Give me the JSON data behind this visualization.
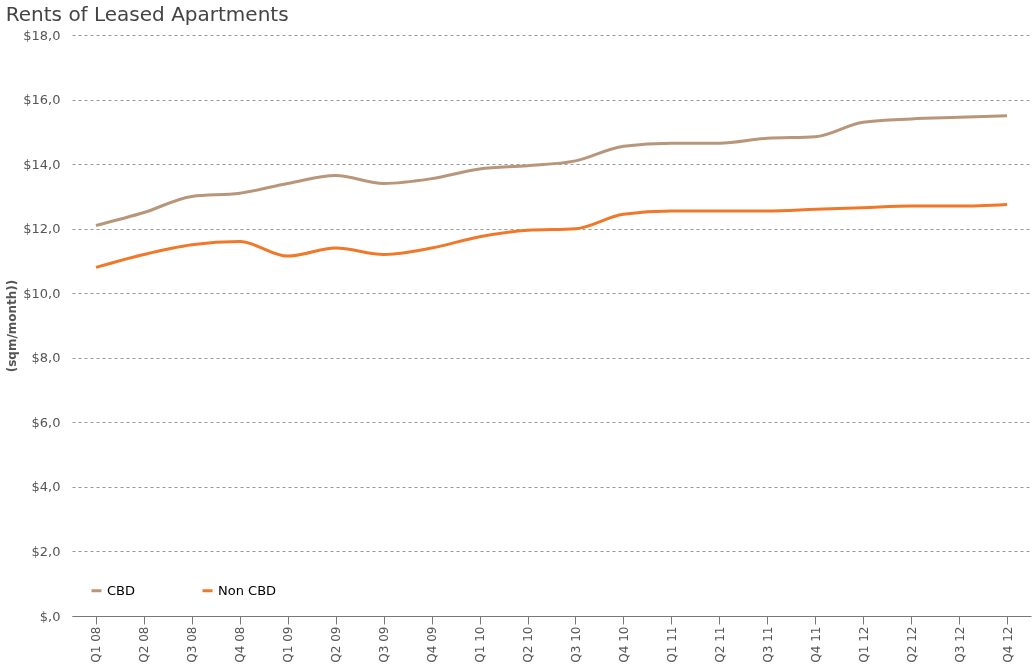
{
  "chart_data": {
    "type": "line",
    "title": "Rents of Leased Apartments",
    "ylabel": "(sqm/month))",
    "categories": [
      "Q1 08",
      "Q2 08",
      "Q3 08",
      "Q4 08",
      "Q1 09",
      "Q2 09",
      "Q3 09",
      "Q4 09",
      "Q1 10",
      "Q2 10",
      "Q3 10",
      "Q4 10",
      "Q1 11",
      "Q2 11",
      "Q3 11",
      "Q4 11",
      "Q1 12",
      "Q2 12",
      "Q3 12",
      "Q4 12"
    ],
    "series": [
      {
        "name": "CBD",
        "color": "#b8967a",
        "values": [
          12.1,
          12.5,
          13.0,
          13.1,
          13.4,
          13.65,
          13.4,
          13.55,
          13.85,
          13.95,
          14.1,
          14.55,
          14.65,
          14.65,
          14.8,
          14.85,
          15.3,
          15.4,
          15.45,
          15.5
        ]
      },
      {
        "name": "Non CBD",
        "color": "#f07828",
        "values": [
          10.8,
          11.2,
          11.5,
          11.6,
          11.15,
          11.4,
          11.2,
          11.4,
          11.75,
          11.95,
          12.0,
          12.45,
          12.55,
          12.55,
          12.55,
          12.6,
          12.65,
          12.7,
          12.7,
          12.75
        ]
      }
    ],
    "ylim": [
      0,
      18
    ],
    "yticks": [
      {
        "value": 0,
        "label": "$,0"
      },
      {
        "value": 2,
        "label": "$2,0"
      },
      {
        "value": 4,
        "label": "$4,0"
      },
      {
        "value": 6,
        "label": "$6,0"
      },
      {
        "value": 8,
        "label": "$8,0"
      },
      {
        "value": 10,
        "label": "$10,0"
      },
      {
        "value": 12,
        "label": "$12,0"
      },
      {
        "value": 14,
        "label": "$14,0"
      },
      {
        "value": 16,
        "label": "$16,0"
      },
      {
        "value": 18,
        "label": "$18,0"
      }
    ],
    "grid": "y",
    "legend": "bottom left",
    "marker": "none",
    "line_style": "solid"
  }
}
